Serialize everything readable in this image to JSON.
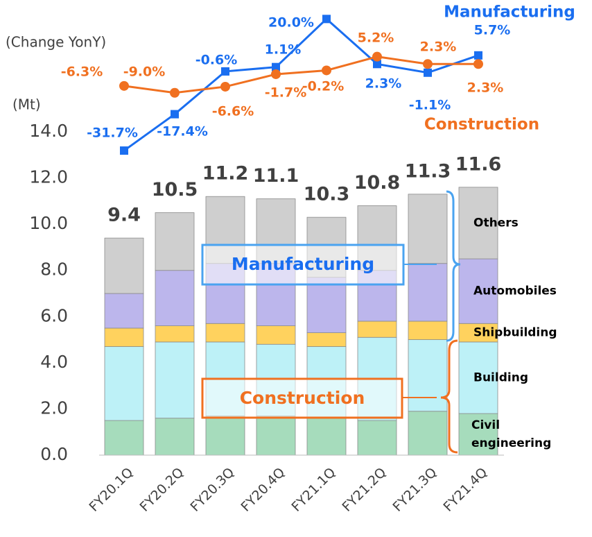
{
  "chart_data": {
    "type": "bar",
    "stacked": true,
    "categories": [
      "FY20.1Q",
      "FY20.2Q",
      "FY20.3Q",
      "FY20.4Q",
      "FY21.1Q",
      "FY21.2Q",
      "FY21.3Q",
      "FY21.4Q"
    ],
    "y_label": "(Mt)",
    "y2_label": "(Change YonY)",
    "ylim": [
      0,
      14
    ],
    "yticks": [
      {
        "value": 0,
        "label": "0.0"
      },
      {
        "value": 2,
        "label": "2.0"
      },
      {
        "value": 4,
        "label": "4.0"
      },
      {
        "value": 6,
        "label": "6.0"
      },
      {
        "value": 8,
        "label": "8.0"
      },
      {
        "value": 10,
        "label": "10.0"
      },
      {
        "value": 12,
        "label": "12.0"
      },
      {
        "value": 14,
        "label": "14.0"
      }
    ],
    "y2lim": [
      -40,
      25
    ],
    "series": [
      {
        "name": "Civil engineering",
        "color": "#a6dcbc",
        "values": [
          1.5,
          1.6,
          1.7,
          1.7,
          1.6,
          1.5,
          1.9,
          1.8
        ]
      },
      {
        "name": "Building",
        "color": "#bdf1f7",
        "values": [
          3.2,
          3.3,
          3.2,
          3.1,
          3.1,
          3.6,
          3.1,
          3.1
        ]
      },
      {
        "name": "Shipbuilding",
        "color": "#ffd25e",
        "values": [
          0.8,
          0.7,
          0.8,
          0.8,
          0.6,
          0.7,
          0.8,
          0.8
        ]
      },
      {
        "name": "Automobiles",
        "color": "#bcb6ec",
        "values": [
          1.5,
          2.4,
          2.6,
          2.7,
          2.4,
          2.2,
          2.5,
          2.8
        ]
      },
      {
        "name": "Others",
        "color": "#cfcfcf",
        "values": [
          2.4,
          2.5,
          2.9,
          2.8,
          2.6,
          2.8,
          3.0,
          3.1
        ]
      },
      {
        "name": "Manufacturing",
        "type": "line",
        "axis": "y2",
        "color": "#1a6ef0",
        "marker": "square",
        "values": [
          -31.7,
          -17.4,
          -0.6,
          1.1,
          20.0,
          2.3,
          -1.1,
          5.7
        ],
        "value_labels": [
          "-31.7%",
          "-17.4%",
          "-0.6%",
          "1.1%",
          "20.0%",
          "2.3%",
          "-1.1%",
          "5.7%"
        ]
      },
      {
        "name": "Construction",
        "type": "line",
        "axis": "y2",
        "color": "#f07020",
        "marker": "circle",
        "values": [
          -6.3,
          -9.0,
          -6.6,
          -1.7,
          -0.2,
          5.2,
          2.3,
          2.3
        ],
        "value_labels": [
          "-6.3%",
          "-9.0%",
          "-6.6%",
          "-1.7%",
          "-0.2%",
          "5.2%",
          "2.3%",
          "2.3%"
        ]
      }
    ],
    "totals": [
      9.4,
      10.5,
      11.2,
      11.1,
      10.3,
      10.8,
      11.3,
      11.6
    ],
    "group_labels": [
      "Manufacturing",
      "Construction"
    ]
  }
}
